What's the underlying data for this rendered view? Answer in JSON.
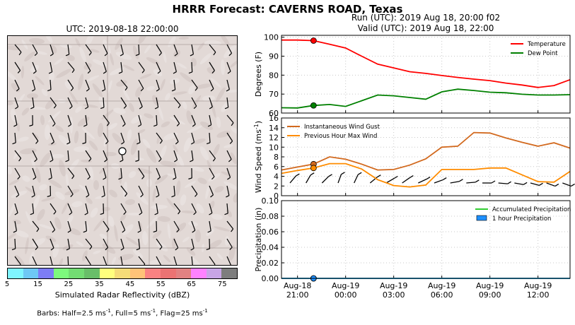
{
  "header": {
    "title": "HRRR Forecast: CAVERNS ROAD, Texas",
    "map_title": "UTC: 2019-08-18 22:00:00",
    "run_line": "Run (UTC): 2019 Aug 18, 20:00 f02",
    "valid_line": "Valid (UTC): 2019 Aug 18, 22:00"
  },
  "colorbar": {
    "label": "Simulated Radar Reflectivity (dBZ)",
    "ticks": [
      "5",
      "15",
      "25",
      "35",
      "45",
      "55",
      "65",
      "75"
    ],
    "colors": [
      "#7ff5ff",
      "#6ec8f5",
      "#7d7df5",
      "#7dfa7d",
      "#73dc73",
      "#69be69",
      "#ffff7d",
      "#f5dc78",
      "#ffc378",
      "#fa8282",
      "#eb7373",
      "#e18282",
      "#ff82ff",
      "#c8a5e6",
      "#7d7d7d"
    ]
  },
  "barbs_note": {
    "text": "Barbs: Half=2.5 ms",
    "sup1": "-1",
    "mid": ", Full=5 ms",
    "sup2": "-1",
    "mid2": ", Flag=25 ms",
    "sup3": "-1"
  },
  "chart_data": [
    {
      "type": "line",
      "ylabel": "Degrees (F)",
      "ylim": [
        60,
        101
      ],
      "yticks": [
        60,
        70,
        80,
        90,
        100
      ],
      "grid": true,
      "legend_position": "top-right",
      "x": [
        "Aug-18 20:00",
        "Aug-18 21:00",
        "Aug-18 22:00",
        "Aug-18 23:00",
        "Aug-19 00:00",
        "Aug-19 01:00",
        "Aug-19 02:00",
        "Aug-19 03:00",
        "Aug-19 04:00",
        "Aug-19 05:00",
        "Aug-19 06:00",
        "Aug-19 07:00",
        "Aug-19 08:00",
        "Aug-19 09:00",
        "Aug-19 10:00",
        "Aug-19 11:00",
        "Aug-19 12:00",
        "Aug-19 13:00",
        "Aug-19 14:00"
      ],
      "series": [
        {
          "name": "Temperature",
          "color": "#ff0000",
          "values": [
            98.5,
            98.5,
            98.2,
            96.3,
            94.3,
            90.0,
            85.8,
            83.8,
            81.8,
            80.9,
            79.8,
            78.8,
            77.9,
            77.1,
            75.8,
            74.8,
            73.5,
            74.5,
            77.6
          ]
        },
        {
          "name": "Dew Point",
          "color": "#008000",
          "values": [
            62.8,
            62.7,
            64.0,
            64.5,
            63.5,
            66.5,
            69.5,
            69.1,
            68.2,
            67.3,
            71.2,
            72.6,
            71.9,
            71.0,
            70.7,
            69.9,
            69.5,
            69.5,
            69.7
          ]
        }
      ],
      "markers_at": "Aug-18 22:00"
    },
    {
      "type": "line",
      "ylabel": "Wind Speed (ms",
      "ylabel_sup": "-1",
      "ylabel_end": ")",
      "ylim": [
        0,
        16
      ],
      "yticks": [
        0,
        2,
        4,
        6,
        8,
        10,
        12,
        14,
        16
      ],
      "grid": true,
      "legend_position": "top-left",
      "x": [
        "Aug-18 20:00",
        "Aug-18 21:00",
        "Aug-18 22:00",
        "Aug-18 23:00",
        "Aug-19 00:00",
        "Aug-19 01:00",
        "Aug-19 02:00",
        "Aug-19 03:00",
        "Aug-19 04:00",
        "Aug-19 05:00",
        "Aug-19 06:00",
        "Aug-19 07:00",
        "Aug-19 08:00",
        "Aug-19 09:00",
        "Aug-19 10:00",
        "Aug-19 11:00",
        "Aug-19 12:00",
        "Aug-19 13:00",
        "Aug-19 14:00"
      ],
      "series": [
        {
          "name": "Instantaneous Wind Gust",
          "color": "#d2691e",
          "values": [
            5.3,
            5.9,
            6.5,
            8.0,
            7.5,
            6.5,
            5.3,
            5.4,
            6.3,
            7.6,
            10.0,
            10.2,
            13.0,
            12.9,
            11.9,
            11.0,
            10.2,
            10.9,
            9.8
          ]
        },
        {
          "name": "Previous Hour Max Wind",
          "color": "#ff8c00",
          "values": [
            4.6,
            5.2,
            5.7,
            6.6,
            6.6,
            5.5,
            3.3,
            2.1,
            1.8,
            2.2,
            5.4,
            5.4,
            5.4,
            5.7,
            5.7,
            4.3,
            2.9,
            2.8,
            5.0
          ]
        }
      ],
      "barb_directions_deg": [
        140,
        150,
        135,
        160,
        155,
        130,
        120,
        125,
        115,
        110,
        100,
        95,
        90,
        85,
        80,
        75,
        70,
        70,
        65
      ],
      "markers_at": "Aug-18 22:00"
    },
    {
      "type": "line",
      "ylabel": "Precipitation (in)",
      "ylim": [
        0,
        0.1
      ],
      "yticks": [
        "0.00",
        "0.02",
        "0.04",
        "0.06",
        "0.08",
        "0.10"
      ],
      "grid": true,
      "legend_position": "top-right",
      "x": [
        "Aug-18 20:00",
        "Aug-18 21:00",
        "Aug-18 22:00",
        "Aug-18 23:00",
        "Aug-19 00:00",
        "Aug-19 01:00",
        "Aug-19 02:00",
        "Aug-19 03:00",
        "Aug-19 04:00",
        "Aug-19 05:00",
        "Aug-19 06:00",
        "Aug-19 07:00",
        "Aug-19 08:00",
        "Aug-19 09:00",
        "Aug-19 10:00",
        "Aug-19 11:00",
        "Aug-19 12:00",
        "Aug-19 13:00",
        "Aug-19 14:00"
      ],
      "series": [
        {
          "name": "Accumulated Precipitation",
          "color": "#32cd32",
          "values": [
            0,
            0,
            0,
            0,
            0,
            0,
            0,
            0,
            0,
            0,
            0,
            0,
            0,
            0,
            0,
            0,
            0,
            0,
            0
          ]
        },
        {
          "name": "1 hour Precipitation",
          "color": "#1e90ff",
          "values": [
            0,
            0,
            0,
            0,
            0,
            0,
            0,
            0,
            0,
            0,
            0,
            0,
            0,
            0,
            0,
            0,
            0,
            0,
            0
          ]
        }
      ],
      "markers_at": "Aug-18 22:00",
      "xtick_labels": [
        [
          "Aug-18",
          "21:00"
        ],
        [
          "Aug-19",
          "00:00"
        ],
        [
          "Aug-19",
          "03:00"
        ],
        [
          "Aug-19",
          "06:00"
        ],
        [
          "Aug-19",
          "09:00"
        ],
        [
          "Aug-19",
          "12:00"
        ]
      ]
    }
  ]
}
